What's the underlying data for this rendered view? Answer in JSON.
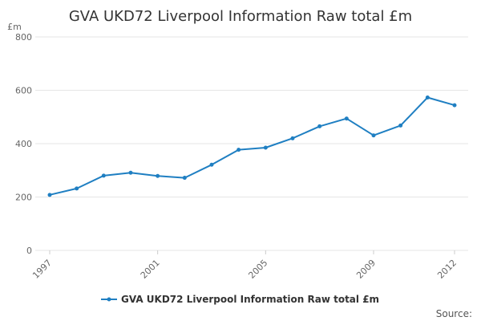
{
  "chart_data": {
    "type": "line",
    "title": "GVA UKD72 Liverpool Information Raw total £m",
    "ylabel": "£m",
    "xlabel": "",
    "ylim": [
      0,
      800
    ],
    "yticks": [
      0,
      200,
      400,
      600,
      800
    ],
    "xticks": [
      1997,
      2001,
      2005,
      2009,
      2012
    ],
    "series": [
      {
        "name": "GVA UKD72 Liverpool Information Raw total £m",
        "color": "#1f7fc2",
        "x": [
          1997,
          1998,
          1999,
          2000,
          2001,
          2002,
          2003,
          2004,
          2005,
          2006,
          2007,
          2008,
          2009,
          2010,
          2011,
          2012
        ],
        "values": [
          208,
          232,
          280,
          291,
          279,
          272,
          321,
          377,
          385,
          420,
          465,
          494,
          431,
          468,
          573,
          544
        ]
      }
    ],
    "legend": "bottom-center",
    "source_label": "Source:"
  }
}
